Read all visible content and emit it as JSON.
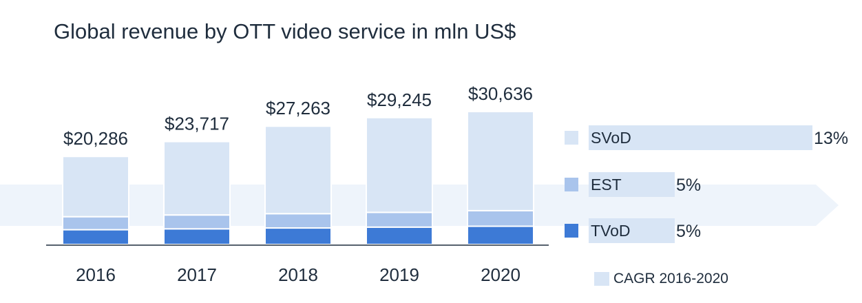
{
  "title": "Global revenue by OTT video service in mln US$",
  "colors": {
    "svod": "#d8e5f5",
    "est": "#a9c4ec",
    "tvod": "#3d7ad6",
    "arrow": "#eef4fb",
    "cagr_bar": "#d8e5f5",
    "axis": "#1f2d3d",
    "text": "#1f2d3d"
  },
  "cagr_legend_label": "CAGR 2016-2020",
  "chart_data": {
    "type": "bar",
    "stacked": true,
    "title": "Global revenue by OTT video service in mln US$",
    "xlabel": "",
    "ylabel": "",
    "categories": [
      "2016",
      "2017",
      "2018",
      "2019",
      "2020"
    ],
    "totals": [
      20286,
      23717,
      27263,
      29245,
      30636
    ],
    "total_labels": [
      "$20,286",
      "$23,717",
      "$27,263",
      "$29,245",
      "$30,636"
    ],
    "series": [
      {
        "name": "TVoD",
        "values": [
          3400,
          3600,
          3800,
          4000,
          4200
        ]
      },
      {
        "name": "EST",
        "values": [
          3000,
          3200,
          3300,
          3400,
          3600
        ]
      },
      {
        "name": "SVoD",
        "values": [
          13886,
          16917,
          20163,
          21845,
          22836
        ]
      }
    ],
    "legend_position": "right",
    "cagr": {
      "label": "CAGR 2016-2020",
      "items": [
        {
          "series": "SVoD",
          "value": 13,
          "label": "13%"
        },
        {
          "series": "EST",
          "value": 5,
          "label": "5%"
        },
        {
          "series": "TVoD",
          "value": 5,
          "label": "5%"
        }
      ]
    },
    "grid": false
  }
}
